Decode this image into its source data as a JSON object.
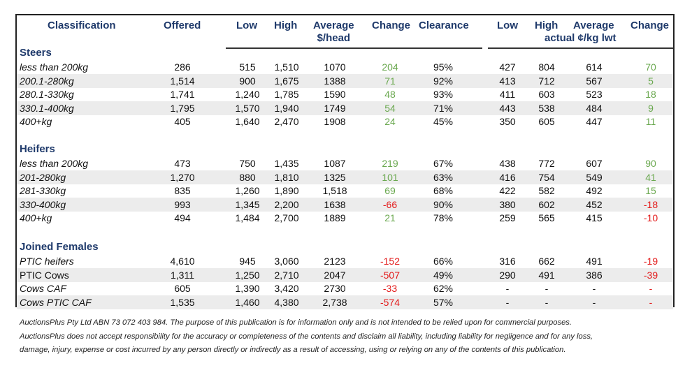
{
  "headers": {
    "classification": "Classification",
    "offered": "Offered",
    "low": "Low",
    "high": "High",
    "average_l1": "Average",
    "average_l2": "$/head",
    "change": "Change",
    "clearance": "Clearance",
    "kg_low": "Low",
    "kg_high": "High",
    "kg_average": "Average",
    "kg_unit": "actual ¢/kg lwt",
    "kg_change": "Change"
  },
  "sections": [
    {
      "title": "Steers",
      "rows": [
        {
          "label": "less than 200kg",
          "italic": true,
          "offered": "286",
          "low": "515",
          "high": "1,510",
          "average": "1070",
          "change": "204",
          "change_dir": "pos",
          "clearance": "95%",
          "kg_low": "427",
          "kg_high": "804",
          "kg_average": "614",
          "kg_change": "70",
          "kg_change_dir": "pos"
        },
        {
          "label": "200.1-280kg",
          "italic": true,
          "offered": "1,514",
          "low": "900",
          "high": "1,675",
          "average": "1388",
          "change": "71",
          "change_dir": "pos",
          "clearance": "92%",
          "kg_low": "413",
          "kg_high": "712",
          "kg_average": "567",
          "kg_change": "5",
          "kg_change_dir": "pos"
        },
        {
          "label": "280.1-330kg",
          "italic": true,
          "offered": "1,741",
          "low": "1,240",
          "high": "1,785",
          "average": "1590",
          "change": "48",
          "change_dir": "pos",
          "clearance": "93%",
          "kg_low": "411",
          "kg_high": "603",
          "kg_average": "523",
          "kg_change": "18",
          "kg_change_dir": "pos"
        },
        {
          "label": "330.1-400kg",
          "italic": true,
          "offered": "1,795",
          "low": "1,570",
          "high": "1,940",
          "average": "1749",
          "change": "54",
          "change_dir": "pos",
          "clearance": "71%",
          "kg_low": "443",
          "kg_high": "538",
          "kg_average": "484",
          "kg_change": "9",
          "kg_change_dir": "pos"
        },
        {
          "label": "400+kg",
          "italic": true,
          "offered": "405",
          "low": "1,640",
          "high": "2,470",
          "average": "1908",
          "change": "24",
          "change_dir": "pos",
          "clearance": "45%",
          "kg_low": "350",
          "kg_high": "605",
          "kg_average": "447",
          "kg_change": "11",
          "kg_change_dir": "pos"
        }
      ]
    },
    {
      "title": "Heifers",
      "rows": [
        {
          "label": "less than 200kg",
          "italic": true,
          "offered": "473",
          "low": "750",
          "high": "1,435",
          "average": "1087",
          "change": "219",
          "change_dir": "pos",
          "clearance": "67%",
          "kg_low": "438",
          "kg_high": "772",
          "kg_average": "607",
          "kg_change": "90",
          "kg_change_dir": "pos"
        },
        {
          "label": "201-280kg",
          "italic": true,
          "offered": "1,270",
          "low": "880",
          "high": "1,810",
          "average": "1325",
          "change": "101",
          "change_dir": "pos",
          "clearance": "63%",
          "kg_low": "416",
          "kg_high": "754",
          "kg_average": "549",
          "kg_change": "41",
          "kg_change_dir": "pos"
        },
        {
          "label": "281-330kg",
          "italic": true,
          "offered": "835",
          "low": "1,260",
          "high": "1,890",
          "average": "1,518",
          "change": "69",
          "change_dir": "pos",
          "clearance": "68%",
          "kg_low": "422",
          "kg_high": "582",
          "kg_average": "492",
          "kg_change": "15",
          "kg_change_dir": "pos"
        },
        {
          "label": "330-400kg",
          "italic": true,
          "offered": "993",
          "low": "1,345",
          "high": "2,200",
          "average": "1638",
          "change": "-66",
          "change_dir": "neg",
          "clearance": "90%",
          "kg_low": "380",
          "kg_high": "602",
          "kg_average": "452",
          "kg_change": "-18",
          "kg_change_dir": "neg"
        },
        {
          "label": "400+kg",
          "italic": true,
          "offered": "494",
          "low": "1,484",
          "high": "2,700",
          "average": "1889",
          "change": "21",
          "change_dir": "pos",
          "clearance": "78%",
          "kg_low": "259",
          "kg_high": "565",
          "kg_average": "415",
          "kg_change": "-10",
          "kg_change_dir": "neg"
        }
      ]
    },
    {
      "title": "Joined Females",
      "rows": [
        {
          "label": "PTIC heifers",
          "italic": true,
          "offered": "4,610",
          "low": "945",
          "high": "3,060",
          "average": "2123",
          "change": "-152",
          "change_dir": "neg",
          "clearance": "66%",
          "kg_low": "316",
          "kg_high": "662",
          "kg_average": "491",
          "kg_change": "-19",
          "kg_change_dir": "neg"
        },
        {
          "label": "PTIC Cows",
          "italic": false,
          "offered": "1,311",
          "low": "1,250",
          "high": "2,710",
          "average": "2047",
          "change": "-507",
          "change_dir": "neg",
          "clearance": "49%",
          "kg_low": "290",
          "kg_high": "491",
          "kg_average": "386",
          "kg_change": "-39",
          "kg_change_dir": "neg"
        },
        {
          "label": "Cows CAF",
          "italic": true,
          "offered": "605",
          "low": "1,390",
          "high": "3,420",
          "average": "2730",
          "change": "-33",
          "change_dir": "neg",
          "clearance": "62%",
          "kg_low": "-",
          "kg_high": "-",
          "kg_average": "-",
          "kg_change": "-",
          "kg_change_dir": "neg"
        },
        {
          "label": "Cows PTIC CAF",
          "italic": true,
          "offered": "1,535",
          "low": "1,460",
          "high": "4,380",
          "average": "2,738",
          "change": "-574",
          "change_dir": "neg",
          "clearance": "57%",
          "kg_low": "-",
          "kg_high": "-",
          "kg_average": "-",
          "kg_change": "-",
          "kg_change_dir": "neg"
        }
      ]
    }
  ],
  "footer": {
    "line1": "AuctionsPlus Pty Ltd ABN 73 072 403 984. The purpose of this publication is for information only and is not intended to be relied upon for commercial purposes.",
    "line2": "AuctionsPlus does not accept responsibility for the accuracy or completeness of the contents and disclaim all liability, including liability for negligence and for any loss,",
    "line3": "damage, injury, expense or cost incurred by any person directly or indirectly as a result of accessing, using or relying on any of the contents of this publication."
  },
  "colors": {
    "header": "#1f3a6b",
    "positive": "#6aa84f",
    "negative": "#e31b1b",
    "shade": "#ececec"
  }
}
